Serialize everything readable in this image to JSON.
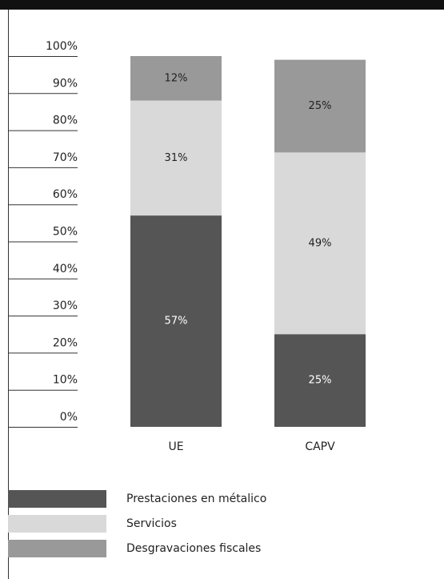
{
  "chart_data": {
    "type": "stacked_bar",
    "categories": [
      "UE",
      "CAPV"
    ],
    "series": [
      {
        "name": "Prestaciones en métalico",
        "color": "#555555",
        "values": [
          57,
          25
        ],
        "value_labels": [
          "57%",
          "25%"
        ]
      },
      {
        "name": "Servicios",
        "color": "#d9d9d9",
        "values": [
          31,
          49
        ],
        "value_labels": [
          "31%",
          "49%"
        ]
      },
      {
        "name": "Desgravaciones fiscales",
        "color": "#999999",
        "values": [
          12,
          25
        ],
        "value_labels": [
          "12%",
          "25%"
        ]
      }
    ],
    "ylim": [
      0,
      100
    ],
    "yticks": [
      {
        "value": 0,
        "label": "0%"
      },
      {
        "value": 10,
        "label": "10%"
      },
      {
        "value": 20,
        "label": "20%"
      },
      {
        "value": 30,
        "label": "30%"
      },
      {
        "value": 40,
        "label": "40%"
      },
      {
        "value": 50,
        "label": "50%"
      },
      {
        "value": 60,
        "label": "60%"
      },
      {
        "value": 70,
        "label": "70%"
      },
      {
        "value": 80,
        "label": "80%"
      },
      {
        "value": 90,
        "label": "90%"
      },
      {
        "value": 100,
        "label": "100%"
      }
    ],
    "grid": true
  }
}
